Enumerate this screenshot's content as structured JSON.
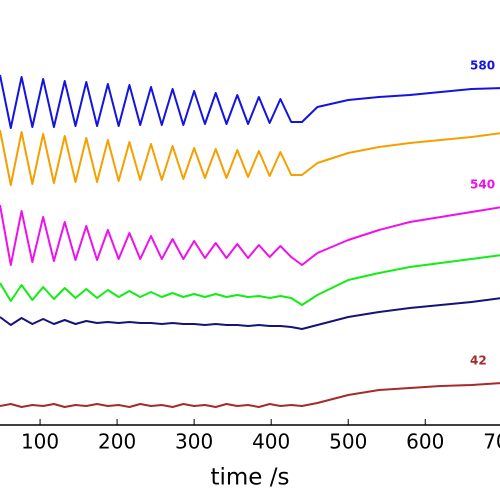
{
  "chart_data": {
    "type": "line",
    "xlabel": "time /s",
    "x": [
      48,
      62,
      76,
      90,
      104,
      118,
      132,
      146,
      160,
      174,
      188,
      202,
      216,
      230,
      244,
      258,
      272,
      286,
      300,
      314,
      328,
      342,
      356,
      370,
      384,
      398,
      412,
      426,
      440,
      460,
      500,
      540,
      580,
      620,
      660,
      700
    ],
    "xlim": [
      48,
      697
    ],
    "xticks": [
      100,
      200,
      300,
      400,
      500,
      600,
      700
    ],
    "ylim": [
      0,
      425
    ],
    "series": [
      {
        "name": "580",
        "color": "#1414e0",
        "values": [
          350,
          297,
          348,
          298,
          346,
          298,
          344,
          299,
          343,
          299,
          341,
          299,
          340,
          300,
          338,
          300,
          336,
          300,
          334,
          301,
          332,
          301,
          330,
          301,
          328,
          302,
          326,
          303,
          303,
          318,
          325,
          328,
          330,
          333,
          336,
          337
        ]
      },
      {
        "name": null,
        "color": "#f5a000",
        "values": [
          295,
          240,
          293,
          241,
          291,
          242,
          289,
          243,
          287,
          243,
          285,
          244,
          283,
          245,
          281,
          245,
          279,
          246,
          277,
          247,
          276,
          247,
          275,
          248,
          274,
          249,
          273,
          250,
          250,
          262,
          272,
          278,
          282,
          285,
          288,
          292
        ]
      },
      {
        "name": "540",
        "color": "#ee11ee",
        "values": [
          220,
          160,
          214,
          163,
          208,
          164,
          203,
          165,
          199,
          165,
          195,
          166,
          192,
          166,
          189,
          166,
          186,
          166,
          184,
          167,
          182,
          167,
          181,
          167,
          180,
          168,
          179,
          168,
          160,
          172,
          185,
          195,
          203,
          208,
          213,
          218
        ]
      },
      {
        "name": null,
        "color": "#11ee11",
        "values": [
          142,
          124,
          140,
          125,
          138,
          126,
          137,
          127,
          136,
          127,
          135,
          128,
          134,
          128,
          133,
          128,
          132,
          128,
          131,
          128,
          131,
          128,
          130,
          128,
          129,
          127,
          129,
          127,
          120,
          130,
          145,
          152,
          158,
          162,
          166,
          170
        ]
      },
      {
        "name": null,
        "color": "#141478",
        "values": [
          108,
          100,
          107,
          101,
          106,
          101,
          105,
          101,
          104,
          102,
          103,
          102,
          103,
          102,
          102,
          101,
          102,
          101,
          101,
          100,
          101,
          100,
          100,
          99,
          100,
          99,
          99,
          98,
          96,
          100,
          108,
          113,
          117,
          120,
          123,
          127
        ]
      },
      {
        "name": "42",
        "color": "#a52a2a",
        "values": [
          19,
          21,
          18,
          20,
          19,
          21,
          18,
          20,
          19,
          21,
          19,
          20,
          18,
          21,
          19,
          20,
          18,
          21,
          19,
          20,
          18,
          21,
          19,
          20,
          18,
          21,
          19,
          20,
          19,
          22,
          30,
          35,
          37,
          39,
          40,
          42
        ]
      }
    ]
  }
}
